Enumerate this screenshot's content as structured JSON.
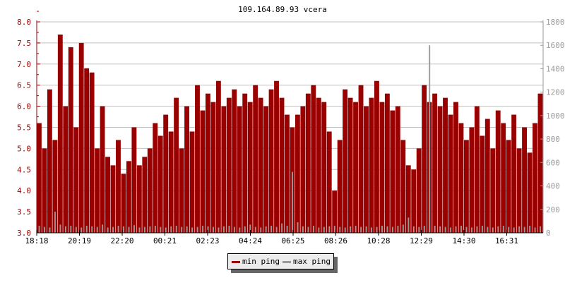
{
  "chart_data": {
    "type": "bar",
    "title": "109.164.89.93 vcera",
    "x_tick_labels": [
      "18:18",
      "20:19",
      "22:20",
      "00:21",
      "02:23",
      "04:24",
      "06:25",
      "08:26",
      "10:28",
      "12:29",
      "14:30",
      "16:31"
    ],
    "x_start": "18:18",
    "x_step_minutes": 15,
    "y_left": {
      "ylim": [
        3.0,
        8.0
      ],
      "ticks": [
        "3.0",
        "3.5",
        "4.0",
        "4.5",
        "5.0",
        "5.5",
        "6.0",
        "6.5",
        "7.0",
        "7.5",
        "8.0"
      ],
      "color": "#990000"
    },
    "y_right": {
      "ylim": [
        0,
        1800
      ],
      "ticks": [
        "0",
        "200",
        "400",
        "600",
        "800",
        "1000",
        "1200",
        "1400",
        "1600",
        "1800"
      ],
      "color": "#999999"
    },
    "grid": true,
    "legend_position": "bottom-center",
    "series": [
      {
        "name": "min ping",
        "axis": "left",
        "color": "#990000",
        "values": [
          5.6,
          5.0,
          6.4,
          5.2,
          7.7,
          6.0,
          7.4,
          5.5,
          7.5,
          6.9,
          6.8,
          5.0,
          6.0,
          4.8,
          4.6,
          5.2,
          4.4,
          4.7,
          5.5,
          4.6,
          4.8,
          5.0,
          5.6,
          5.3,
          5.8,
          5.4,
          6.2,
          5.0,
          6.0,
          5.4,
          6.5,
          5.9,
          6.3,
          6.1,
          6.6,
          6.0,
          6.2,
          6.4,
          6.0,
          6.3,
          6.1,
          6.5,
          6.2,
          6.0,
          6.4,
          6.6,
          6.2,
          5.8,
          5.5,
          5.8,
          6.0,
          6.3,
          6.5,
          6.2,
          6.1,
          5.4,
          4.0,
          5.2,
          6.4,
          6.2,
          6.1,
          6.5,
          6.0,
          6.2,
          6.6,
          6.1,
          6.3,
          5.9,
          6.0,
          5.2,
          4.6,
          4.5,
          5.0,
          6.5,
          6.1,
          6.3,
          6.0,
          6.2,
          5.8,
          6.1,
          5.6,
          5.2,
          5.5,
          6.0,
          5.3,
          5.7,
          5.0,
          5.9,
          5.6,
          5.2,
          5.8,
          5.0,
          5.5,
          4.9,
          5.6,
          6.3
        ]
      },
      {
        "name": "max ping",
        "axis": "right",
        "color": "#999999",
        "values": [
          60,
          50,
          45,
          180,
          70,
          55,
          60,
          50,
          45,
          60,
          55,
          50,
          70,
          45,
          50,
          60,
          55,
          50,
          65,
          45,
          50,
          55,
          60,
          50,
          45,
          55,
          60,
          50,
          55,
          45,
          50,
          60,
          55,
          50,
          45,
          55,
          60,
          50,
          45,
          55,
          70,
          50,
          45,
          55,
          60,
          50,
          80,
          60,
          520,
          90,
          55,
          50,
          60,
          45,
          50,
          55,
          60,
          50,
          45,
          55,
          60,
          50,
          55,
          45,
          50,
          60,
          55,
          50,
          60,
          70,
          130,
          55,
          50,
          60,
          1600,
          60,
          55,
          50,
          45,
          55,
          60,
          50,
          45,
          55,
          60,
          50,
          45,
          55,
          60,
          50,
          45,
          55,
          50,
          60,
          45,
          55
        ]
      }
    ]
  },
  "legend": {
    "items": [
      {
        "label": "min ping",
        "color": "#990000"
      },
      {
        "label": "max ping",
        "color": "#999999"
      }
    ]
  }
}
